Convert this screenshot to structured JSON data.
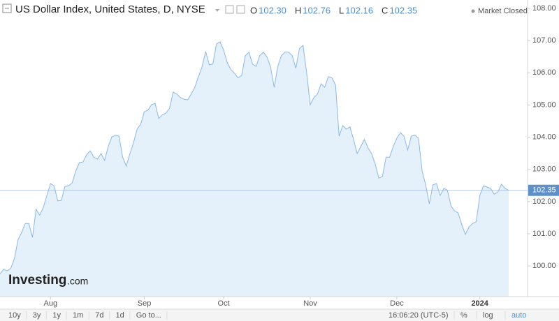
{
  "header": {
    "title": "US Dollar Index, United States, D, NYSE",
    "ohlc": [
      {
        "label": "O",
        "value": "102.30"
      },
      {
        "label": "H",
        "value": "102.76"
      },
      {
        "label": "L",
        "value": "102.16"
      },
      {
        "label": "C",
        "value": "102.35"
      }
    ],
    "status": "Market Closed"
  },
  "watermark": [
    "Investing",
    ".com"
  ],
  "toolbar": {
    "ranges": [
      "10y",
      "3y",
      "1y",
      "1m",
      "7d",
      "1d",
      "Go to..."
    ],
    "time": "16:06:20 (UTC-5)",
    "options": [
      "%",
      "log",
      "auto"
    ]
  },
  "chart_data": {
    "type": "area",
    "color": "#8ab8e6",
    "fill": "#e4f1fb",
    "categories": [
      null,
      null,
      null,
      null,
      null,
      null,
      null,
      null,
      null,
      null,
      null,
      null,
      null,
      null,
      "Aug",
      null,
      null,
      null,
      null,
      null,
      null,
      null,
      null,
      null,
      null,
      null,
      null,
      null,
      null,
      null,
      null,
      null,
      null,
      null,
      null,
      null,
      null,
      null,
      null,
      null,
      "Sep",
      null,
      null,
      null,
      null,
      null,
      null,
      null,
      null,
      null,
      null,
      null,
      null,
      null,
      null,
      null,
      null,
      null,
      null,
      null,
      null,
      null,
      "Oct",
      null,
      null,
      null,
      null,
      null,
      null,
      null,
      null,
      null,
      null,
      null,
      null,
      null,
      null,
      null,
      null,
      null,
      null,
      null,
      null,
      null,
      null,
      null,
      "Nov",
      null,
      null,
      null,
      null,
      null,
      null,
      null,
      null,
      null,
      null,
      null,
      null,
      null,
      null,
      null,
      null,
      null,
      null,
      null,
      null,
      null,
      null,
      null,
      "Dec",
      null,
      null,
      null,
      null,
      null,
      null,
      null,
      null,
      null,
      null,
      null,
      null,
      null,
      null,
      null,
      null,
      null,
      null,
      null,
      null,
      null,
      null,
      "2024",
      null,
      null,
      null,
      null,
      null,
      null,
      null,
      null
    ],
    "values": [
      99.76,
      99.89,
      99.85,
      99.93,
      100.24,
      100.82,
      101.04,
      101.32,
      101.32,
      100.89,
      101.76,
      101.58,
      101.82,
      102.19,
      102.56,
      102.49,
      102.02,
      102.04,
      102.47,
      102.49,
      102.58,
      102.95,
      103.21,
      103.23,
      103.45,
      103.58,
      103.38,
      103.32,
      103.49,
      103.28,
      103.71,
      104.01,
      104.06,
      104.03,
      103.38,
      103.1,
      103.49,
      103.82,
      104.25,
      104.4,
      104.79,
      104.84,
      105.01,
      105.05,
      104.58,
      104.69,
      104.75,
      104.9,
      105.4,
      105.34,
      105.23,
      105.18,
      105.16,
      105.34,
      105.55,
      105.88,
      106.18,
      106.66,
      106.25,
      106.27,
      106.9,
      106.96,
      106.7,
      106.31,
      106.1,
      105.99,
      105.84,
      105.92,
      106.53,
      106.64,
      106.27,
      106.2,
      106.53,
      106.64,
      106.49,
      106.18,
      105.55,
      106.2,
      106.53,
      106.64,
      106.64,
      106.53,
      106.14,
      106.75,
      106.85,
      105.99,
      105.01,
      105.23,
      105.34,
      105.66,
      105.55,
      105.88,
      105.84,
      105.62,
      104.03,
      104.36,
      104.25,
      104.32,
      103.93,
      103.49,
      103.71,
      103.93,
      103.67,
      103.49,
      103.17,
      102.73,
      102.78,
      103.38,
      103.38,
      103.71,
      103.97,
      104.14,
      104.03,
      103.6,
      104.03,
      104.06,
      103.97,
      102.95,
      102.52,
      101.93,
      102.52,
      102.56,
      102.19,
      102.41,
      102.36,
      101.87,
      101.71,
      101.65,
      101.28,
      100.98,
      101.21,
      101.32,
      101.37,
      102.19,
      102.49,
      102.45,
      102.41,
      102.23,
      102.3,
      102.54,
      102.41,
      102.35
    ],
    "last": 102.35,
    "ylim": [
      99.05,
      108.26
    ],
    "yticks": [
      {
        "value": 100,
        "label": "100.00"
      },
      {
        "value": 101,
        "label": "101.00"
      },
      {
        "value": 102,
        "label": "102.00"
      },
      {
        "value": 103,
        "label": "103.00"
      },
      {
        "value": 104,
        "label": "104.00"
      },
      {
        "value": 105,
        "label": "105.00"
      },
      {
        "value": 106,
        "label": "106.00"
      },
      {
        "value": 107,
        "label": "107.00"
      },
      {
        "value": 108,
        "label": "108.00"
      }
    ],
    "grid": false
  }
}
